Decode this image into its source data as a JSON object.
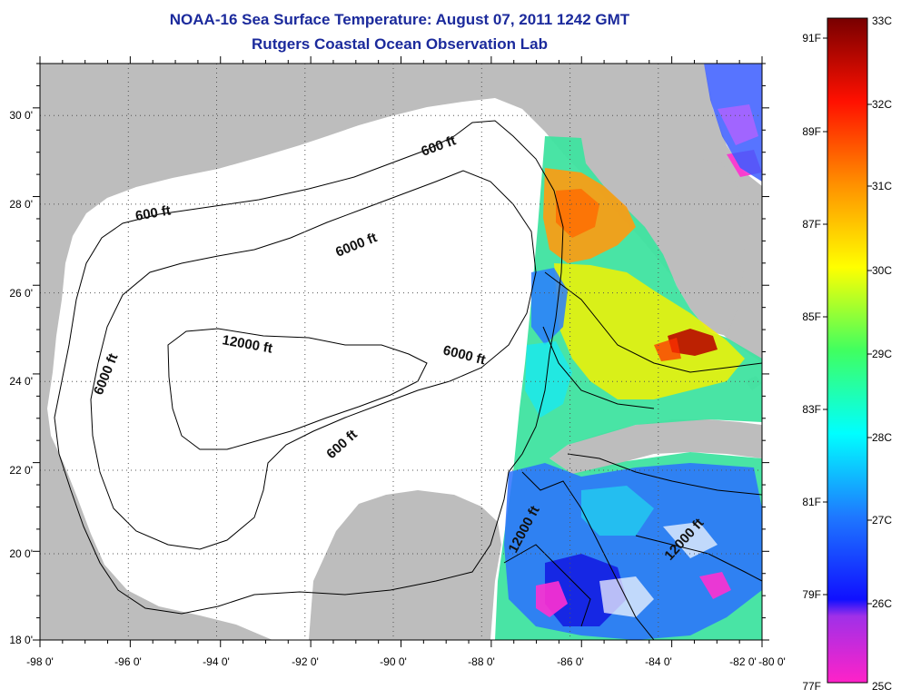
{
  "title": "NOAA-16 Sea Surface Temperature:  August 07, 2011 1242 GMT",
  "subtitle": "Rutgers Coastal Ocean Observation Lab",
  "x_ticks": [
    "-98 0'",
    "-96 0'",
    "-94 0'",
    "-92 0'",
    "-90 0'",
    "-88 0'",
    "-86 0'",
    "-84 0'",
    "-82 0'",
    "-80 0'"
  ],
  "y_ticks": [
    "30 0'",
    "28 0'",
    "26 0'",
    "24 0'",
    "22 0'",
    "20 0'",
    "18 0'"
  ],
  "contour_labels": [
    "600 ft",
    "600 ft",
    "6000 ft",
    "6000 ft",
    "12000 ft",
    "6000 ft",
    "600 ft",
    "12000 ft",
    "12000 ft"
  ],
  "colorbar": {
    "celsius": [
      "33C",
      "32C",
      "31C",
      "30C",
      "29C",
      "28C",
      "27C",
      "26C",
      "25C"
    ],
    "fahrenheit": [
      "91F",
      "89F",
      "87F",
      "85F",
      "83F",
      "81F",
      "79F",
      "77F"
    ]
  },
  "colors": {
    "land": "#bdbdbd",
    "title": "#1b2a9c"
  }
}
